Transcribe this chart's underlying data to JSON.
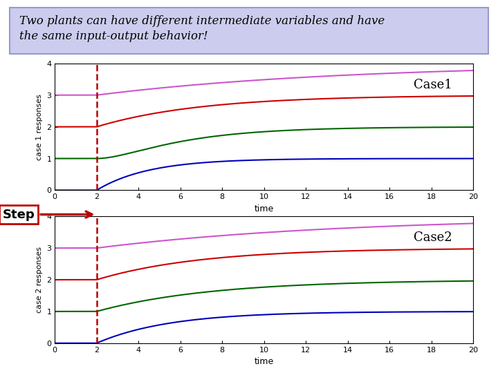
{
  "title_text": "Two plants can have different intermediate variables and have\nthe same input-output behavior!",
  "title_bg_color": "#ccccee",
  "title_fontsize": 12,
  "step_time": 2.0,
  "t_end": 20,
  "case1_label": "Case1",
  "case2_label": "Case2",
  "ylabel1": "case 1 responses",
  "ylabel2": "case 2 responses",
  "xlabel": "time",
  "ylim": [
    0,
    4
  ],
  "xlim": [
    0,
    20
  ],
  "dashed_line_color": "#bb0000",
  "blue": "#0000bb",
  "green": "#006600",
  "red": "#cc0000",
  "magenta": "#cc55cc",
  "step_label": "Step",
  "step_fontsize": 13
}
